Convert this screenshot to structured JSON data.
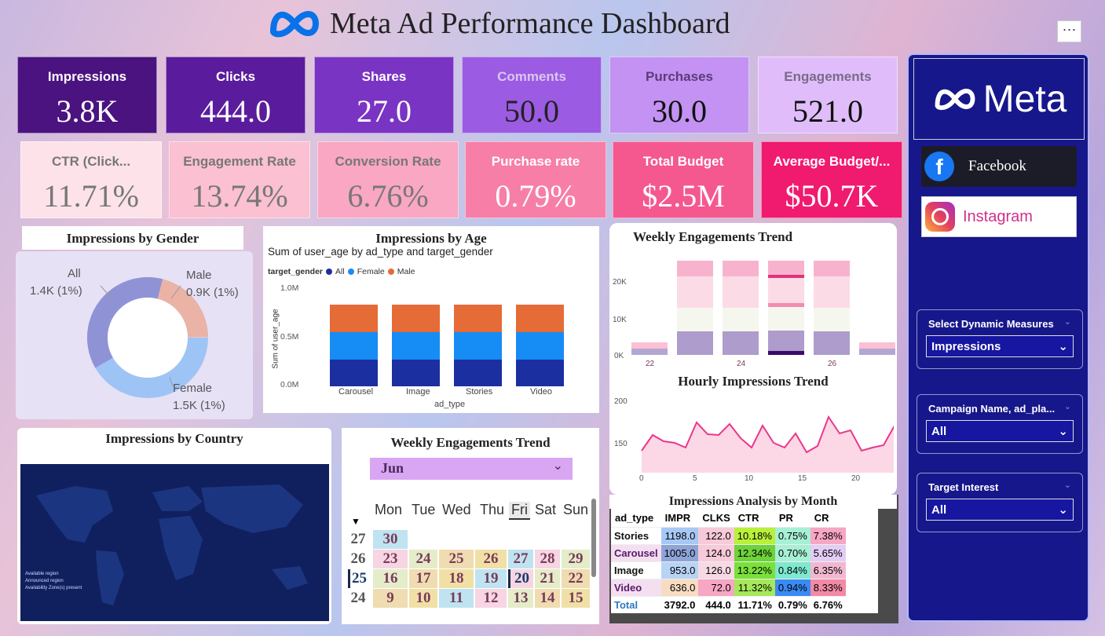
{
  "title": "Meta Ad Performance Dashboard",
  "more_label": "···",
  "kpis_row1": [
    {
      "label": "Impressions",
      "value": "3.8K",
      "bg": "#4a1380",
      "fg": "#ffffff",
      "lbl": "#ffffff"
    },
    {
      "label": "Clicks",
      "value": "444.0",
      "bg": "#5a1c9c",
      "fg": "#ffffff",
      "lbl": "#ffffff"
    },
    {
      "label": "Shares",
      "value": "27.0",
      "bg": "#7a34c3",
      "fg": "#ffffff",
      "lbl": "#ffffff"
    },
    {
      "label": "Comments",
      "value": "50.0",
      "bg": "#9c5be3",
      "fg": "#222222",
      "lbl": "#d8c8f0"
    },
    {
      "label": "Purchases",
      "value": "30.0",
      "bg": "#c392f3",
      "fg": "#111111",
      "lbl": "#5a3c7a"
    },
    {
      "label": "Engagements",
      "value": "521.0",
      "bg": "#e0bdfa",
      "fg": "#111111",
      "lbl": "#7a6a8a"
    }
  ],
  "kpis_row2": [
    {
      "label": "CTR (Click...",
      "value": "11.71%",
      "bg": "#fde2ea",
      "fg": "#777777",
      "lbl": "#777777"
    },
    {
      "label": "Engagement Rate",
      "value": "13.74%",
      "bg": "#fbc0d2",
      "fg": "#777777",
      "lbl": "#777777"
    },
    {
      "label": "Conversion Rate",
      "value": "6.76%",
      "bg": "#f9a7c2",
      "fg": "#777777",
      "lbl": "#777777"
    },
    {
      "label": "Purchase rate",
      "value": "0.79%",
      "bg": "#f77ea7",
      "fg": "#ffffff",
      "lbl": "#ffffff"
    },
    {
      "label": "Total Budget",
      "value": "$2.5M",
      "bg": "#f4588e",
      "fg": "#ffffff",
      "lbl": "#ffffff"
    },
    {
      "label": "Average Budget/...",
      "value": "$50.7K",
      "bg": "#f01a6e",
      "fg": "#ffffff",
      "lbl": "#ffffff"
    }
  ],
  "gender": {
    "title": "Impressions by Gender",
    "all_label": "All",
    "all_value": "1.4K (1%)",
    "male_label": "Male",
    "male_value": "0.9K (1%)",
    "female_label": "Female",
    "female_value": "1.5K (1%)",
    "colors": {
      "all": "#8f93d6",
      "male": "#eab3a6",
      "female": "#9ec4f5"
    }
  },
  "age": {
    "title": "Impressions by Age",
    "subtitle": "Sum of user_age by ad_type and target_gender",
    "legend_title": "target_gender",
    "legend": [
      "All",
      "Female",
      "Male"
    ],
    "colors": [
      "#1c2fa0",
      "#168cf5",
      "#e56b37"
    ],
    "ylabel": "Sum of user_age",
    "xlabel": "ad_type",
    "ticks": [
      "1.0M",
      "0.5M",
      "0.0M"
    ]
  },
  "weekly_top": {
    "title": "Weekly Engagements Trend",
    "yticks": [
      "20K",
      "10K",
      "0K"
    ],
    "xticks": [
      "22",
      "24",
      "26"
    ]
  },
  "hourly": {
    "title": "Hourly Impressions Trend",
    "yticks": [
      "200",
      "150"
    ],
    "xticks": [
      "0",
      "5",
      "10",
      "15",
      "20"
    ]
  },
  "country": {
    "title": "Impressions by Country",
    "legend": [
      "Available region",
      "Announced region",
      "Availability Zone(s) present"
    ]
  },
  "calendar": {
    "title": "Weekly Engagements Trend",
    "month": "Jun",
    "days": [
      "Mon",
      "Tue",
      "Wed",
      "Thu",
      "Fri",
      "Sat",
      "Sun"
    ],
    "rows": [
      [
        "27",
        "30",
        "",
        "",
        "",
        "",
        "",
        ""
      ],
      [
        "26",
        "23",
        "24",
        "25",
        "26",
        "27",
        "28",
        "29"
      ],
      [
        "25",
        "16",
        "17",
        "18",
        "19",
        "20",
        "21",
        "22"
      ],
      [
        "24",
        "9",
        "10",
        "11",
        "12",
        "13",
        "14",
        "15"
      ]
    ]
  },
  "matrix": {
    "title": "Impressions Analysis by Month",
    "headers": [
      "ad_type",
      "IMPR",
      "CLKS",
      "CTR",
      "PR",
      "CR"
    ],
    "rows": [
      [
        "Stories",
        "1198.0",
        "122.0",
        "10.18%",
        "0.75%",
        "7.38%"
      ],
      [
        "Carousel",
        "1005.0",
        "124.0",
        "12.34%",
        "0.70%",
        "5.65%"
      ],
      [
        "Image",
        "953.0",
        "126.0",
        "13.22%",
        "0.84%",
        "6.35%"
      ],
      [
        "Video",
        "636.0",
        "72.0",
        "11.32%",
        "0.94%",
        "8.33%"
      ]
    ],
    "total": [
      "Total",
      "3792.0",
      "444.0",
      "11.71%",
      "0.79%",
      "6.76%"
    ]
  },
  "sidebar": {
    "brand": "Meta",
    "facebook": "Facebook",
    "instagram": "Instagram",
    "slicers": [
      {
        "title": "Select Dynamic Measures",
        "value": "Impressions"
      },
      {
        "title": "Campaign Name, ad_pla...",
        "value": "All"
      },
      {
        "title": "Target Interest",
        "value": "All"
      }
    ]
  }
}
